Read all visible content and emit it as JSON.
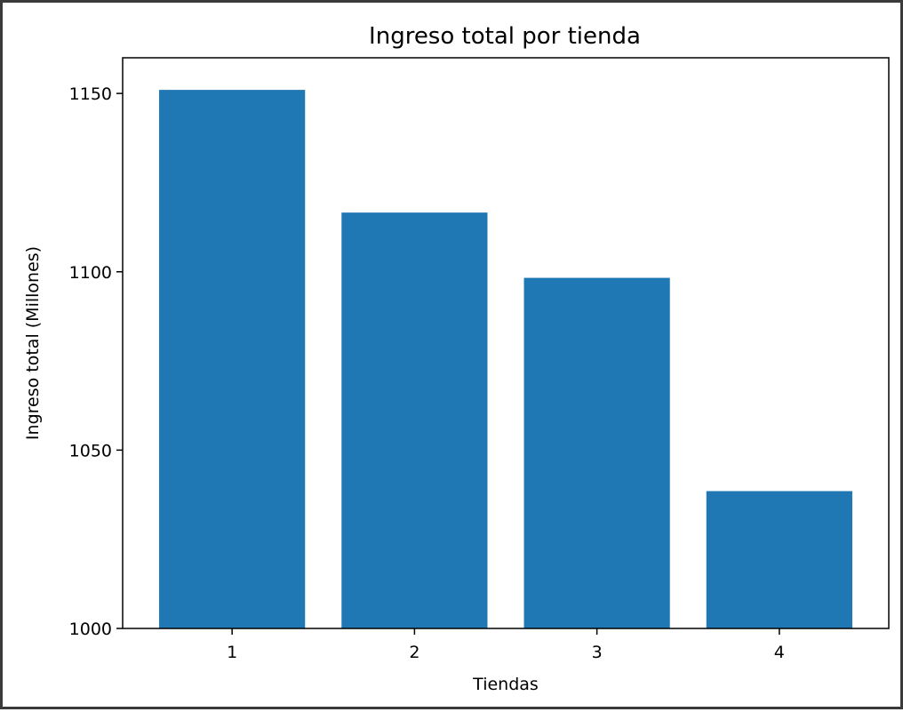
{
  "chart_data": {
    "type": "bar",
    "title": "Ingreso total por tienda",
    "xlabel": "Tiendas",
    "ylabel": "Ingreso total (Millones)",
    "categories": [
      "1",
      "2",
      "3",
      "4"
    ],
    "values": [
      1151,
      1116.6,
      1098.3,
      1038.5
    ],
    "ylim": [
      1000,
      1160
    ],
    "yticks": [
      1000,
      1050,
      1100,
      1150
    ],
    "grid": false,
    "color": "#1f77b4"
  }
}
